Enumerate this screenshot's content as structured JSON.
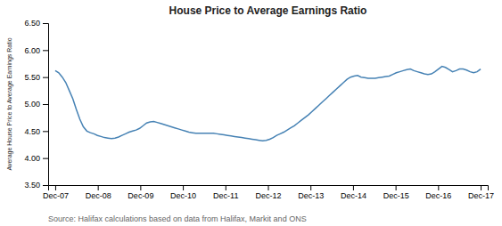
{
  "chart_data": {
    "type": "line",
    "title": "House Price to Average Earnings Ratio",
    "y_label": "Average House Price to Average Earnings Ratio",
    "annotations": [
      "Source: Halifax calculations based on data from Halifax,  Markit and ONS"
    ],
    "x": [
      0,
      0.992,
      1.983,
      2.975,
      3.967,
      4.959,
      5.95,
      6.942,
      7.934,
      8.926,
      9.917,
      10.909,
      11.901,
      12.893,
      13.884,
      14.876,
      15.868,
      16.86,
      17.851,
      18.843,
      19.835,
      20.826,
      21.818,
      22.81,
      23.802,
      24.793,
      25.785,
      26.777,
      27.769,
      28.76,
      29.752,
      30.744,
      31.736,
      32.727,
      33.719,
      34.711,
      35.702,
      36.694,
      37.686,
      38.678,
      39.669,
      40.661,
      41.653,
      42.645,
      43.636,
      44.628,
      45.62,
      46.612,
      47.603,
      48.595,
      49.587,
      50.579,
      51.57,
      52.562,
      53.554,
      54.545,
      55.537,
      56.529,
      57.521,
      58.512,
      59.504,
      60.496,
      61.488,
      62.479,
      63.471,
      64.463,
      65.455,
      66.446,
      67.438,
      68.43,
      69.421,
      70.413,
      71.405,
      72.397,
      73.388,
      74.38,
      75.372,
      76.364,
      77.355,
      78.347,
      79.339,
      80.331,
      81.322,
      82.314,
      83.306,
      84.298,
      85.289,
      86.281,
      87.273,
      88.264,
      89.256,
      90.248,
      91.24,
      92.231,
      93.223,
      94.215,
      95.207,
      96.198,
      97.19,
      98.182,
      99.174,
      100.165,
      101.157,
      102.149,
      103.14,
      104.132,
      105.124,
      106.116,
      107.107,
      108.099,
      109.091,
      110.083,
      111.074,
      112.066,
      113.058,
      114.05,
      115.041,
      116.033,
      117.025,
      118.017,
      119.008,
      120
    ],
    "values": [
      5.62,
      5.58,
      5.5,
      5.4,
      5.25,
      5.1,
      4.9,
      4.72,
      4.58,
      4.5,
      4.47,
      4.45,
      4.42,
      4.4,
      4.38,
      4.37,
      4.36,
      4.37,
      4.39,
      4.42,
      4.45,
      4.48,
      4.5,
      4.52,
      4.55,
      4.6,
      4.65,
      4.67,
      4.68,
      4.66,
      4.64,
      4.62,
      4.6,
      4.58,
      4.56,
      4.54,
      4.52,
      4.5,
      4.48,
      4.47,
      4.46,
      4.46,
      4.46,
      4.46,
      4.46,
      4.46,
      4.45,
      4.44,
      4.43,
      4.42,
      4.41,
      4.4,
      4.39,
      4.38,
      4.37,
      4.36,
      4.35,
      4.34,
      4.33,
      4.32,
      4.33,
      4.35,
      4.38,
      4.42,
      4.45,
      4.48,
      4.52,
      4.56,
      4.6,
      4.65,
      4.7,
      4.75,
      4.8,
      4.86,
      4.92,
      4.98,
      5.04,
      5.1,
      5.16,
      5.22,
      5.28,
      5.34,
      5.4,
      5.46,
      5.5,
      5.52,
      5.53,
      5.5,
      5.49,
      5.48,
      5.48,
      5.48,
      5.49,
      5.5,
      5.51,
      5.52,
      5.55,
      5.58,
      5.6,
      5.62,
      5.64,
      5.65,
      5.62,
      5.6,
      5.58,
      5.56,
      5.55,
      5.56,
      5.6,
      5.65,
      5.7,
      5.68,
      5.64,
      5.6,
      5.62,
      5.65,
      5.65,
      5.63,
      5.6,
      5.58,
      5.6,
      5.65
    ],
    "xlim": [
      -2,
      122
    ],
    "xticks": [
      {
        "value": 0,
        "label": "Dec-07"
      },
      {
        "value": 12,
        "label": "Dec-08"
      },
      {
        "value": 24,
        "label": "Dec-09"
      },
      {
        "value": 36,
        "label": "Dec-10"
      },
      {
        "value": 48,
        "label": "Dec-11"
      },
      {
        "value": 60,
        "label": "Dec-12"
      },
      {
        "value": 72,
        "label": "Dec-13"
      },
      {
        "value": 84,
        "label": "Dec-14"
      },
      {
        "value": 96,
        "label": "Dec-15"
      },
      {
        "value": 108,
        "label": "Dec-16"
      },
      {
        "value": 120,
        "label": "Dec-17"
      }
    ],
    "ylim": [
      3.5,
      6.5
    ],
    "yticks": [
      {
        "value": 3.5,
        "label": "3.50"
      },
      {
        "value": 4.0,
        "label": "4.00"
      },
      {
        "value": 4.5,
        "label": "4.50"
      },
      {
        "value": 5.0,
        "label": "5.00"
      },
      {
        "value": 5.5,
        "label": "5.50"
      },
      {
        "value": 6.0,
        "label": "6.00"
      },
      {
        "value": 6.5,
        "label": "6.50"
      }
    ],
    "grid": false
  }
}
